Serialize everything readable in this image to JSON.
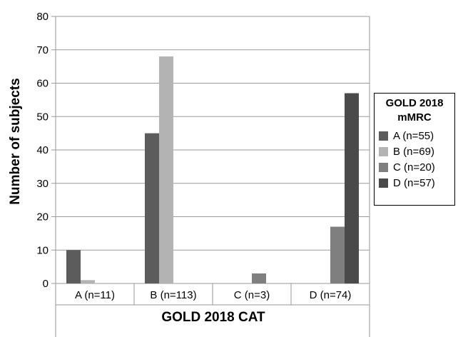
{
  "chart_data": {
    "type": "bar",
    "categories": [
      "A (n=11)",
      "B (n=113)",
      "C (n=3)",
      "D (n=74)"
    ],
    "series": [
      {
        "name": "A (n=55)",
        "values": [
          10,
          45,
          0,
          0
        ],
        "color": "#5c5c5c"
      },
      {
        "name": "B (n=69)",
        "values": [
          1,
          68,
          0,
          0
        ],
        "color": "#b3b3b3"
      },
      {
        "name": "C (n=20)",
        "values": [
          0,
          0,
          3,
          17
        ],
        "color": "#7f7f7f"
      },
      {
        "name": "D (n=57)",
        "values": [
          0,
          0,
          0,
          57
        ],
        "color": "#4a4a4a"
      }
    ],
    "xlabel": "GOLD 2018 CAT",
    "ylabel": "Number of subjects",
    "ylim": [
      0,
      80
    ],
    "yticks": [
      0,
      10,
      20,
      30,
      40,
      50,
      60,
      70,
      80
    ],
    "grid": true,
    "legend": {
      "title_line1": "GOLD 2018",
      "title_line2": "mMRC",
      "placement": "right"
    }
  }
}
